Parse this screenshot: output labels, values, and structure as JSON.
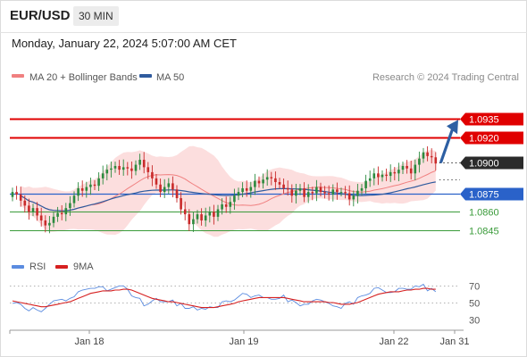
{
  "header": {
    "symbol": "EUR/USD",
    "timeframe": "30 MIN",
    "datetime": "Monday, January 22, 2024 5:07:00 AM CET"
  },
  "legend": {
    "ma20": "MA 20 + Bollinger Bands",
    "ma50": "MA 50",
    "copyright": "Research © 2024 Trading Central",
    "rsi": "RSI",
    "rsi_ma": "9MA"
  },
  "colors": {
    "candle_up": "#2b8a3e",
    "candle_down": "#c92a2a",
    "bollinger_fill": "#fbd3d3",
    "ma20": "#f08080",
    "ma50": "#2f5b9e",
    "resistance": "#e00000",
    "pivot": "#2a62c9",
    "support": "#3a9b3a",
    "rsi": "#5b8ce0",
    "rsi_ma": "#d62020",
    "arrow": "#2d5fa3"
  },
  "chart_data": [
    {
      "type": "candlestick",
      "ylim": [
        1.0835,
        1.0955
      ],
      "levels": [
        {
          "value": 1.0935,
          "label": "1.0935",
          "kind": "resistance"
        },
        {
          "value": 1.092,
          "label": "1.0920",
          "kind": "resistance"
        },
        {
          "value": 1.09,
          "label": "1.0900",
          "kind": "target"
        },
        {
          "value": 1.0875,
          "label": "1.0875",
          "kind": "pivot"
        },
        {
          "value": 1.086,
          "label": "1.0860",
          "kind": "support"
        },
        {
          "value": 1.0845,
          "label": "1.0845",
          "kind": "support"
        }
      ],
      "x_ticks": [
        "Jan 18",
        "Jan 19",
        "Jan 22",
        "Jan 31"
      ],
      "close": [
        1.0876,
        1.0874,
        1.0869,
        1.0865,
        1.086,
        1.0863,
        1.0857,
        1.0853,
        1.0849,
        1.0851,
        1.0856,
        1.0859,
        1.0858,
        1.0863,
        1.0867,
        1.0873,
        1.0879,
        1.0877,
        1.088,
        1.0882,
        1.0881,
        1.0887,
        1.0891,
        1.0894,
        1.0895,
        1.0897,
        1.0894,
        1.0896,
        1.0895,
        1.0893,
        1.0898,
        1.0902,
        1.0896,
        1.0892,
        1.0887,
        1.0882,
        1.0876,
        1.088,
        1.0883,
        1.0878,
        1.0871,
        1.0862,
        1.0858,
        1.085,
        1.0854,
        1.0858,
        1.0853,
        1.0857,
        1.086,
        1.0856,
        1.0862,
        1.0866,
        1.0864,
        1.0868,
        1.0873,
        1.0876,
        1.0879,
        1.0877,
        1.088,
        1.0885,
        1.0883,
        1.0886,
        1.0888,
        1.0887,
        1.0884,
        1.0882,
        1.0879,
        1.0878,
        1.0873,
        1.0877,
        1.0879,
        1.0872,
        1.0876,
        1.0875,
        1.088,
        1.0876,
        1.0875,
        1.0874,
        1.0878,
        1.0876,
        1.0876,
        1.0875,
        1.087,
        1.0873,
        1.0877,
        1.0879,
        1.0885,
        1.0887,
        1.0891,
        1.0888,
        1.089,
        1.0889,
        1.0892,
        1.0891,
        1.0894,
        1.0897,
        1.0895,
        1.0891,
        1.0898,
        1.0903,
        1.0908,
        1.0905,
        1.0904,
        1.0899
      ],
      "open_first": 1.0872
    },
    {
      "type": "line",
      "title": "RSI",
      "ylim": [
        20,
        80
      ],
      "y_ticks": [
        30,
        50,
        70
      ],
      "series": [
        {
          "name": "RSI",
          "values": [
            49,
            50,
            48,
            43,
            40,
            44,
            41,
            39,
            43,
            48,
            52,
            53,
            54,
            52,
            55,
            57,
            63,
            65,
            66,
            67,
            67,
            69,
            69,
            64,
            66,
            68,
            70,
            70,
            66,
            58,
            56,
            55,
            46,
            48,
            52,
            55,
            51,
            51,
            51,
            53,
            46,
            49,
            43,
            43,
            45,
            41,
            43,
            42,
            45,
            44,
            44,
            51,
            52,
            51,
            53,
            57,
            61,
            60,
            56,
            58,
            59,
            56,
            56,
            54,
            54,
            55,
            59,
            51,
            53,
            50,
            46,
            48,
            48,
            52,
            54,
            53,
            51,
            49,
            46,
            45,
            43,
            49,
            51,
            48,
            56,
            58,
            59,
            61,
            67,
            68,
            65,
            62,
            62,
            63,
            67,
            67,
            66,
            66,
            70,
            69,
            72,
            64,
            67,
            63
          ]
        },
        {
          "name": "9MA",
          "values": [
            52,
            51,
            50,
            49,
            48,
            47,
            46,
            45,
            45,
            46,
            47,
            48,
            49,
            50,
            51,
            53,
            55,
            57,
            59,
            61,
            62,
            63,
            64,
            64,
            64,
            65,
            65,
            66,
            66,
            65,
            63,
            61,
            59,
            57,
            55,
            54,
            53,
            52,
            51,
            51,
            50,
            49,
            48,
            47,
            46,
            45,
            44,
            44,
            44,
            44,
            45,
            46,
            47,
            48,
            49,
            51,
            52,
            53,
            54,
            55,
            56,
            56,
            56,
            56,
            56,
            56,
            56,
            55,
            54,
            53,
            52,
            51,
            51,
            51,
            51,
            51,
            51,
            50,
            50,
            49,
            48,
            48,
            48,
            49,
            50,
            52,
            54,
            56,
            58,
            60,
            61,
            62,
            63,
            63,
            63,
            64,
            65,
            65,
            66,
            66,
            67,
            67,
            66,
            66
          ]
        }
      ]
    }
  ]
}
